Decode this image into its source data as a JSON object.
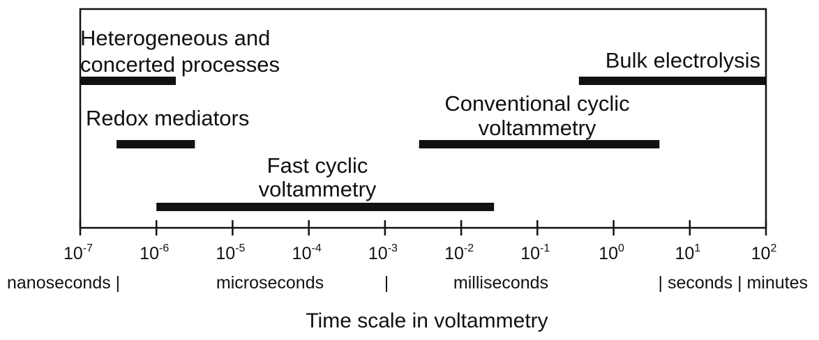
{
  "chart_data": {
    "type": "range-bar",
    "title": "",
    "xlabel": "Time scale in voltammetry",
    "ylabel": "",
    "x_scale": "log",
    "xlim": [
      1e-07,
      100
    ],
    "grid": false,
    "x_ticks": [
      {
        "value": 1e-07,
        "base": "10",
        "exp": "-7"
      },
      {
        "value": 1e-06,
        "base": "10",
        "exp": "-6"
      },
      {
        "value": 1e-05,
        "base": "10",
        "exp": "-5"
      },
      {
        "value": 0.0001,
        "base": "10",
        "exp": "-4"
      },
      {
        "value": 0.001,
        "base": "10",
        "exp": "-3"
      },
      {
        "value": 0.01,
        "base": "10",
        "exp": "-2"
      },
      {
        "value": 0.1,
        "base": "10",
        "exp": "-1"
      },
      {
        "value": 1,
        "base": "10",
        "exp": "0"
      },
      {
        "value": 10,
        "base": "10",
        "exp": "1"
      },
      {
        "value": 100,
        "base": "10",
        "exp": "2"
      }
    ],
    "unit_labels": [
      "nanoseconds |",
      "microseconds",
      "|",
      "milliseconds",
      "| seconds | minutes"
    ],
    "bars": [
      {
        "label": [
          "Heterogeneous and",
          "concerted processes"
        ],
        "start": 1e-07,
        "end": 1.8e-06
      },
      {
        "label": [
          "Bulk electrolysis"
        ],
        "start": 0.35,
        "end": 100
      },
      {
        "label": [
          "Redox mediators"
        ],
        "start": 3e-07,
        "end": 3.2e-06
      },
      {
        "label": [
          "Conventional cyclic",
          "voltammetry"
        ],
        "start": 0.0028,
        "end": 4
      },
      {
        "label": [
          "Fast cyclic",
          "voltammetry"
        ],
        "start": 1e-06,
        "end": 0.027
      }
    ]
  }
}
